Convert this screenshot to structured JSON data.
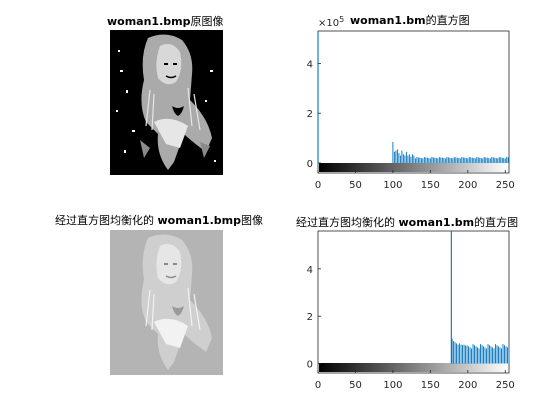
{
  "panels": {
    "original_image": {
      "title_bold": "woman1.bmp",
      "title_rest": "原图像"
    },
    "original_hist": {
      "title_bold": "woman1.bm",
      "title_rest": "的直方图",
      "exponent_label": "×10",
      "exponent_power": "5"
    },
    "equalized_image": {
      "title_pre": "经过直方图均衡化的 ",
      "title_bold": "woman1.bmp",
      "title_rest": "图像"
    },
    "equalized_hist": {
      "title_pre": "经过直方图均衡化的 ",
      "title_bold": "woman1.bm",
      "title_rest": "的直方图"
    }
  },
  "colors": {
    "bar": "#0072BD",
    "axis": "#262626"
  },
  "chart_data": [
    {
      "type": "bar",
      "name": "original_histogram",
      "xlim": [
        0,
        255
      ],
      "ylim": [
        -0.4,
        5.3
      ],
      "y_exponent": 5,
      "xticks": [
        0,
        50,
        100,
        150,
        200,
        250
      ],
      "yticks": [
        0,
        2,
        4
      ],
      "colorbar": "gray 0-255",
      "spikes": [
        [
          0,
          5.3
        ]
      ],
      "base_range": [
        100,
        255
      ],
      "head_values": [
        0.85,
        0.45,
        0.5,
        0.55,
        0.4,
        0.3,
        0.5,
        0.35,
        0.3,
        0.45,
        0.3,
        0.35,
        0.25,
        0.35,
        0.3
      ],
      "tail_value": 0.22
    },
    {
      "type": "bar",
      "name": "equalized_histogram",
      "xlim": [
        0,
        255
      ],
      "ylim": [
        -0.4,
        5.6
      ],
      "y_exponent": 5,
      "xticks": [
        0,
        50,
        100,
        150,
        200,
        250
      ],
      "yticks": [
        0,
        2,
        4
      ],
      "colorbar": "gray 0-255",
      "spikes": [
        [
          178,
          5.6
        ]
      ],
      "base_range": [
        179,
        255
      ],
      "head_values": [
        1.05,
        0.95,
        0.9,
        0.85,
        0.8,
        0.85,
        0.8,
        0.78,
        0.8,
        0.76
      ],
      "tail_value": 0.75
    }
  ]
}
